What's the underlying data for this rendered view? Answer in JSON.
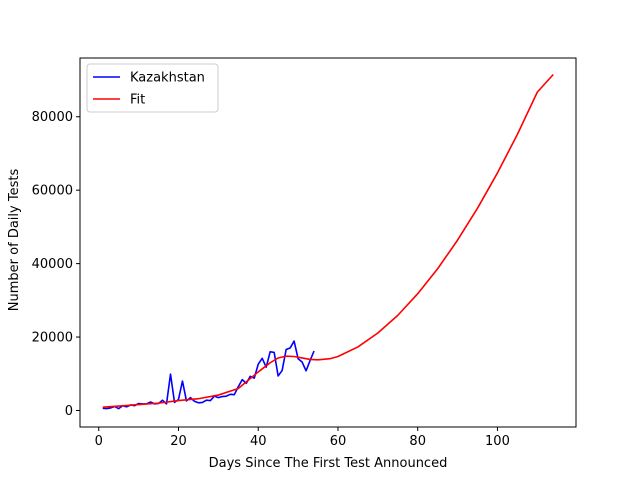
{
  "chart_data": {
    "type": "line",
    "title": "",
    "xlabel": "Days Since The First Test Announced",
    "ylabel": "Number of Daily Tests",
    "xlim": [
      -4.7,
      119.7
    ],
    "ylim": [
      -4500,
      96000
    ],
    "xticks": [
      0,
      20,
      40,
      60,
      80,
      100
    ],
    "yticks": [
      0,
      20000,
      40000,
      60000,
      80000
    ],
    "grid": false,
    "legend_position": "upper-left",
    "series": [
      {
        "name": "Kazakhstan",
        "color": "#0000ff",
        "x": [
          1,
          2,
          3,
          4,
          5,
          6,
          7,
          8,
          9,
          10,
          11,
          12,
          13,
          14,
          15,
          16,
          17,
          18,
          19,
          20,
          21,
          22,
          23,
          24,
          25,
          26,
          27,
          28,
          29,
          30,
          31,
          32,
          33,
          34,
          35,
          36,
          37,
          38,
          39,
          40,
          41,
          42,
          43,
          44,
          45,
          46,
          47,
          48,
          49,
          50,
          51,
          52,
          53,
          54
        ],
        "y": [
          600,
          500,
          700,
          1100,
          500,
          1300,
          1000,
          1500,
          1300,
          1900,
          1800,
          1800,
          2300,
          1800,
          1900,
          2800,
          1800,
          9900,
          2200,
          3000,
          8000,
          2600,
          3500,
          2500,
          2100,
          2200,
          2800,
          2700,
          3900,
          3500,
          3800,
          3900,
          4400,
          4300,
          6500,
          8400,
          7400,
          9300,
          8800,
          12600,
          14200,
          11800,
          16000,
          15800,
          9400,
          10900,
          16600,
          17000,
          18900,
          14100,
          13200,
          10800,
          13600,
          16200
        ]
      },
      {
        "name": "Fit",
        "color": "#ff0000",
        "x": [
          1,
          5,
          10,
          15,
          20,
          25,
          30,
          35,
          40,
          43,
          45,
          47,
          49,
          51,
          53,
          55,
          58,
          60,
          65,
          70,
          75,
          80,
          85,
          90,
          95,
          100,
          105,
          110,
          114
        ],
        "y": [
          900,
          1200,
          1600,
          2000,
          2700,
          3200,
          4200,
          6000,
          10500,
          13000,
          14300,
          14800,
          14700,
          14300,
          13900,
          13800,
          14100,
          14700,
          17300,
          21100,
          25900,
          31800,
          38600,
          46400,
          55100,
          64700,
          75200,
          86700,
          91500
        ]
      }
    ]
  }
}
